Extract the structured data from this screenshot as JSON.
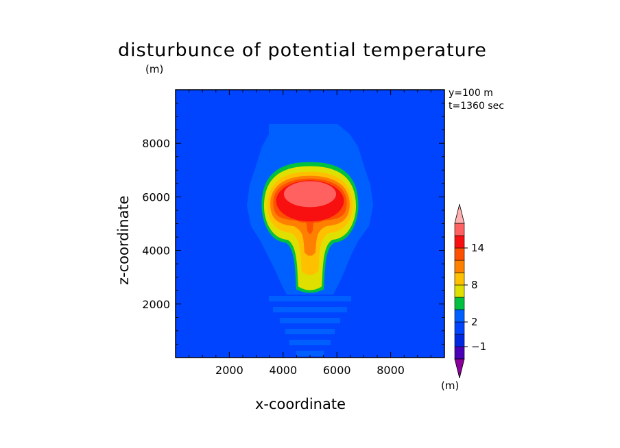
{
  "title": "disturbunce of potential temperature",
  "y_unit": "(m)",
  "x_axis_label": "x-coordinate",
  "y_axis_label": "z-coordinate",
  "info_y": "y=100 m",
  "info_t": "t=1360 sec",
  "colorbar_unit": "(m)",
  "colors": {
    "background_field": "#0044ff",
    "contour_levels": [
      "#8a009a",
      "#4a00b4",
      "#0028e0",
      "#0044ff",
      "#0060ff",
      "#00c040",
      "#e0e000",
      "#ffc000",
      "#ff8000",
      "#ff5000",
      "#f81010",
      "#ff6060",
      "#ffb0b0"
    ]
  },
  "chart_data": {
    "type": "heatmap",
    "title": "disturbunce of potential temperature",
    "xlabel": "x-coordinate",
    "ylabel": "z-coordinate",
    "xlim": [
      0,
      10000
    ],
    "ylim": [
      0,
      10000
    ],
    "x_ticks": [
      2000,
      4000,
      6000,
      8000
    ],
    "y_ticks": [
      2000,
      4000,
      6000,
      8000
    ],
    "x_tick_labels": [
      "2000",
      "4000",
      "6000",
      "8000"
    ],
    "y_tick_labels": [
      "2000",
      "4000",
      "6000",
      "8000"
    ],
    "colorbar": {
      "labeled_levels": [
        "14",
        "8",
        "2",
        "-1"
      ],
      "unit": "(m)"
    },
    "field_features": {
      "thermal_center_x": 5000,
      "cap_top_z": 7300,
      "cap_bottom_z": 4500,
      "cap_half_width": 1800,
      "max_core_center_z": 6000,
      "stem_bottom_z": 2800,
      "max_value_approx": 16
    },
    "annotations": [
      "y=100 m",
      "t=1360 sec"
    ]
  }
}
